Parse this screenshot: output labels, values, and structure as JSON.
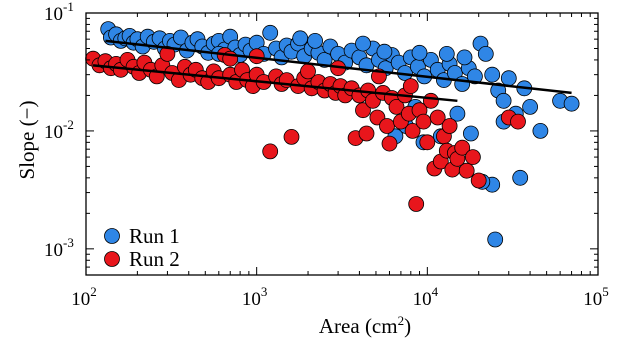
{
  "chart_data": {
    "type": "scatter",
    "xscale": "log",
    "yscale": "log",
    "xlim": [
      100,
      100000
    ],
    "ylim": [
      0.0006,
      0.1
    ],
    "xlabel_base": "Area (cm",
    "xlabel_sup": "2",
    "xlabel_close": ")",
    "ylabel": "Slope (−)",
    "x_ticks": [
      {
        "base": "10",
        "exp": "2",
        "value": 100
      },
      {
        "base": "10",
        "exp": "3",
        "value": 1000
      },
      {
        "base": "10",
        "exp": "4",
        "value": 10000
      },
      {
        "base": "10",
        "exp": "5",
        "value": 100000
      }
    ],
    "y_ticks": [
      {
        "base": "10",
        "exp": "-3",
        "value": 0.001
      },
      {
        "base": "10",
        "exp": "-2",
        "value": 0.01
      },
      {
        "base": "10",
        "exp": "-1",
        "value": 0.1
      }
    ],
    "legend": {
      "position": "bottom-left"
    },
    "series": [
      {
        "name": "Run 1",
        "color": "#2f86e6",
        "trend": {
          "x": [
            130,
            70000
          ],
          "y": [
            0.058,
            0.021
          ]
        },
        "points": [
          [
            135,
            0.073
          ],
          [
            140,
            0.062
          ],
          [
            150,
            0.066
          ],
          [
            160,
            0.058
          ],
          [
            170,
            0.061
          ],
          [
            180,
            0.064
          ],
          [
            190,
            0.056
          ],
          [
            200,
            0.06
          ],
          [
            215,
            0.052
          ],
          [
            230,
            0.063
          ],
          [
            250,
            0.057
          ],
          [
            270,
            0.061
          ],
          [
            290,
            0.05
          ],
          [
            310,
            0.058
          ],
          [
            330,
            0.054
          ],
          [
            360,
            0.062
          ],
          [
            390,
            0.048
          ],
          [
            420,
            0.056
          ],
          [
            450,
            0.06
          ],
          [
            480,
            0.052
          ],
          [
            520,
            0.046
          ],
          [
            560,
            0.055
          ],
          [
            600,
            0.058
          ],
          [
            650,
            0.049
          ],
          [
            700,
            0.063
          ],
          [
            750,
            0.051
          ],
          [
            800,
            0.044
          ],
          [
            860,
            0.054
          ],
          [
            920,
            0.048
          ],
          [
            1000,
            0.056
          ],
          [
            1100,
            0.045
          ],
          [
            1200,
            0.068
          ],
          [
            1300,
            0.05
          ],
          [
            1400,
            0.042
          ],
          [
            1500,
            0.053
          ],
          [
            1600,
            0.047
          ],
          [
            1750,
            0.055
          ],
          [
            1900,
            0.043
          ],
          [
            2100,
            0.05
          ],
          [
            2300,
            0.046
          ],
          [
            2500,
            0.04
          ],
          [
            2700,
            0.052
          ],
          [
            3000,
            0.045
          ],
          [
            3300,
            0.038
          ],
          [
            3600,
            0.048
          ],
          [
            4000,
            0.042
          ],
          [
            4400,
            0.036
          ],
          [
            4800,
            0.05
          ],
          [
            5200,
            0.04
          ],
          [
            5700,
            0.034
          ],
          [
            6200,
            0.044
          ],
          [
            6800,
            0.038
          ],
          [
            7400,
            0.031
          ],
          [
            8000,
            0.042
          ],
          [
            8800,
            0.035
          ],
          [
            9600,
            0.029
          ],
          [
            10500,
            0.04
          ],
          [
            11500,
            0.033
          ],
          [
            12500,
            0.027
          ],
          [
            13500,
            0.037
          ],
          [
            14500,
            0.031
          ],
          [
            16000,
            0.025
          ],
          [
            17500,
            0.034
          ],
          [
            19000,
            0.029
          ],
          [
            20500,
            0.055
          ],
          [
            22000,
            0.045
          ],
          [
            24000,
            0.03
          ],
          [
            26000,
            0.022
          ],
          [
            28000,
            0.018
          ],
          [
            30000,
            0.028
          ],
          [
            33000,
            0.014
          ],
          [
            35000,
            0.004
          ],
          [
            37000,
            0.023
          ],
          [
            40000,
            0.016
          ],
          [
            46000,
            0.01
          ],
          [
            60000,
            0.018
          ],
          [
            70000,
            0.017
          ],
          [
            25000,
            0.0012
          ],
          [
            24000,
            0.0035
          ],
          [
            21000,
            0.0037
          ],
          [
            9500,
            0.008
          ],
          [
            7500,
            0.011
          ],
          [
            12000,
            0.009
          ],
          [
            18000,
            0.0095
          ],
          [
            6500,
            0.009
          ],
          [
            28000,
            0.012
          ],
          [
            15000,
            0.014
          ],
          [
            8500,
            0.016
          ],
          [
            600,
            0.045
          ],
          [
            1800,
            0.061
          ],
          [
            4200,
            0.055
          ],
          [
            2200,
            0.058
          ],
          [
            9000,
            0.046
          ],
          [
            13000,
            0.045
          ],
          [
            16500,
            0.042
          ],
          [
            5600,
            0.047
          ]
        ]
      },
      {
        "name": "Run 2",
        "color": "#e8161c",
        "trend": {
          "x": [
            110,
            15000
          ],
          "y": [
            0.036,
            0.018
          ]
        },
        "points": [
          [
            110,
            0.041
          ],
          [
            120,
            0.036
          ],
          [
            130,
            0.039
          ],
          [
            140,
            0.034
          ],
          [
            150,
            0.037
          ],
          [
            160,
            0.033
          ],
          [
            175,
            0.04
          ],
          [
            190,
            0.035
          ],
          [
            205,
            0.031
          ],
          [
            220,
            0.038
          ],
          [
            240,
            0.033
          ],
          [
            260,
            0.029
          ],
          [
            280,
            0.036
          ],
          [
            300,
            0.045
          ],
          [
            320,
            0.031
          ],
          [
            350,
            0.027
          ],
          [
            380,
            0.035
          ],
          [
            410,
            0.03
          ],
          [
            440,
            0.033
          ],
          [
            480,
            0.028
          ],
          [
            520,
            0.026
          ],
          [
            560,
            0.032
          ],
          [
            600,
            0.028
          ],
          [
            650,
            0.044
          ],
          [
            700,
            0.03
          ],
          [
            760,
            0.026
          ],
          [
            820,
            0.033
          ],
          [
            880,
            0.027
          ],
          [
            950,
            0.024
          ],
          [
            1000,
            0.03
          ],
          [
            1100,
            0.026
          ],
          [
            1200,
            0.0067
          ],
          [
            1300,
            0.029
          ],
          [
            1400,
            0.025
          ],
          [
            1500,
            0.027
          ],
          [
            1600,
            0.0089
          ],
          [
            1750,
            0.024
          ],
          [
            1900,
            0.028
          ],
          [
            2100,
            0.023
          ],
          [
            2300,
            0.026
          ],
          [
            2500,
            0.022
          ],
          [
            2700,
            0.025
          ],
          [
            2900,
            0.021
          ],
          [
            3100,
            0.024
          ],
          [
            3300,
            0.02
          ],
          [
            3600,
            0.023
          ],
          [
            3800,
            0.0087
          ],
          [
            4000,
            0.02
          ],
          [
            4200,
            0.015
          ],
          [
            4500,
            0.022
          ],
          [
            4800,
            0.018
          ],
          [
            5100,
            0.013
          ],
          [
            5500,
            0.021
          ],
          [
            5800,
            0.011
          ],
          [
            6200,
            0.019
          ],
          [
            6600,
            0.016
          ],
          [
            7000,
            0.012
          ],
          [
            7400,
            0.02
          ],
          [
            7800,
            0.014
          ],
          [
            8200,
            0.01
          ],
          [
            8600,
            0.0024
          ],
          [
            9000,
            0.015
          ],
          [
            9500,
            0.012
          ],
          [
            10000,
            0.008
          ],
          [
            10500,
            0.018
          ],
          [
            11000,
            0.0048
          ],
          [
            11500,
            0.013
          ],
          [
            12000,
            0.0055
          ],
          [
            12500,
            0.009
          ],
          [
            13000,
            0.0068
          ],
          [
            13500,
            0.011
          ],
          [
            14000,
            0.0047
          ],
          [
            14500,
            0.0065
          ],
          [
            15000,
            0.0058
          ],
          [
            16000,
            0.0072
          ],
          [
            17000,
            0.0046
          ],
          [
            18500,
            0.006
          ],
          [
            20000,
            0.0038
          ],
          [
            4400,
            0.0095
          ],
          [
            6000,
            0.0078
          ],
          [
            30000,
            0.013
          ],
          [
            34000,
            0.012
          ],
          [
            2000,
            0.032
          ],
          [
            1000,
            0.043
          ],
          [
            3000,
            0.034
          ],
          [
            5200,
            0.029
          ],
          [
            8000,
            0.024
          ],
          [
            700,
            0.041
          ]
        ]
      }
    ]
  }
}
